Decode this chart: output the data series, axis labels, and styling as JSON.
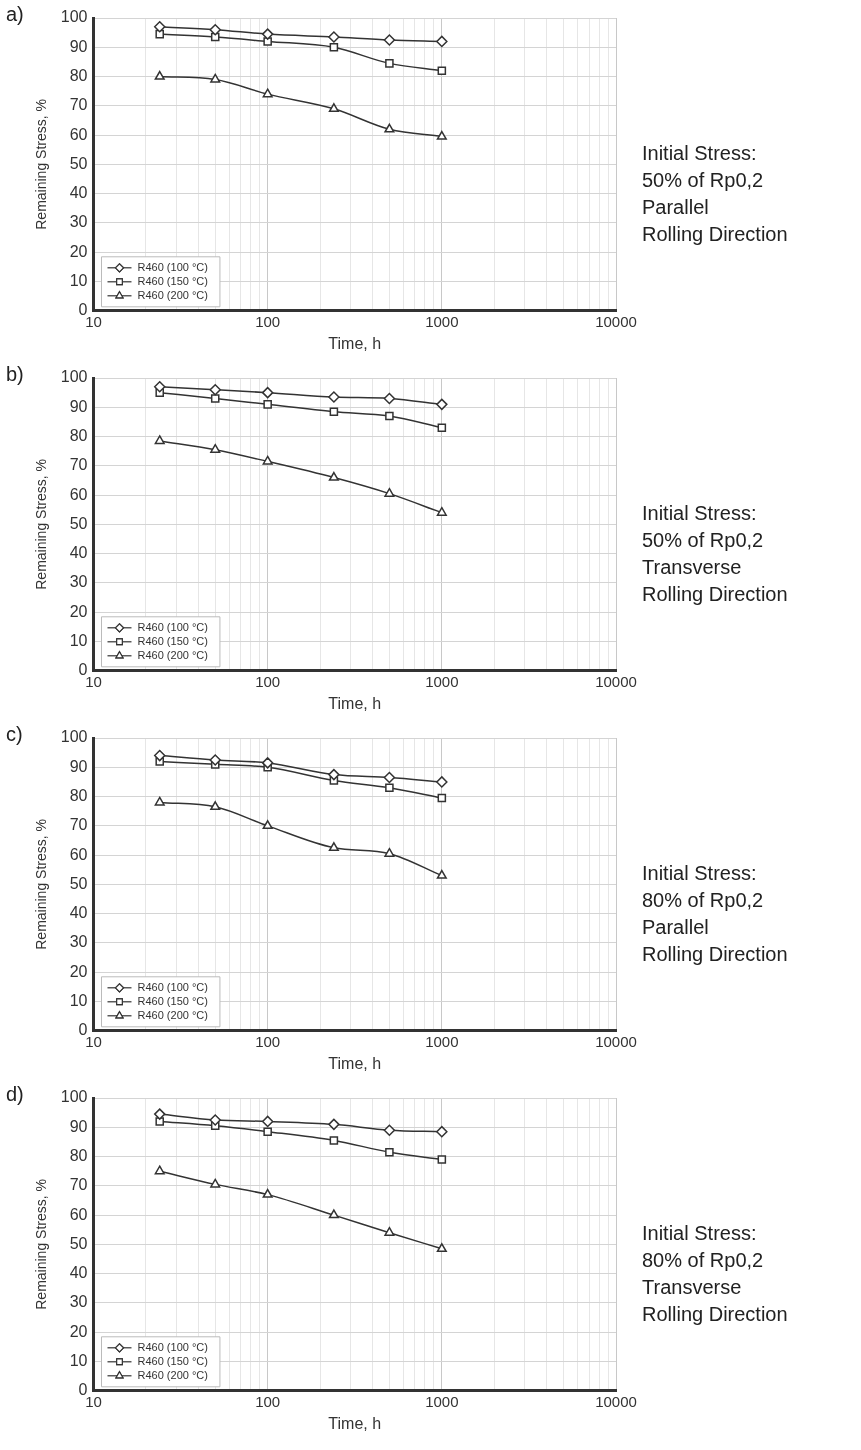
{
  "chart_data": [
    {
      "type": "line",
      "xlabel": "Time, h",
      "ylabel": "Remaining Stress, %",
      "annotations": [
        "a)",
        "Initial Stress:",
        "50% of Rp0,2",
        "Parallel",
        "Rolling Direction"
      ],
      "log": "x",
      "grid": true,
      "legend": "bottom left",
      "xlim": [
        10,
        10000
      ],
      "ylim": [
        0,
        100
      ],
      "xticks": [
        10,
        {
          "value": 20,
          "label": null
        },
        {
          "value": 30,
          "label": null
        },
        {
          "value": 40,
          "label": null
        },
        {
          "value": 50,
          "label": null
        },
        {
          "value": 60,
          "label": null
        },
        {
          "value": 70,
          "label": null
        },
        {
          "value": 80,
          "label": null
        },
        {
          "value": 90,
          "label": null
        },
        100,
        {
          "value": 200,
          "label": null
        },
        {
          "value": 300,
          "label": null
        },
        {
          "value": 400,
          "label": null
        },
        {
          "value": 500,
          "label": null
        },
        {
          "value": 600,
          "label": null
        },
        {
          "value": 700,
          "label": null
        },
        {
          "value": 800,
          "label": null
        },
        {
          "value": 900,
          "label": null
        },
        1000,
        {
          "value": 2000,
          "label": null
        },
        {
          "value": 3000,
          "label": null
        },
        {
          "value": 4000,
          "label": null
        },
        {
          "value": 5000,
          "label": null
        },
        {
          "value": 6000,
          "label": null
        },
        {
          "value": 7000,
          "label": null
        },
        {
          "value": 8000,
          "label": null
        },
        {
          "value": 9000,
          "label": null
        },
        10000
      ],
      "yticks": [
        0,
        10,
        20,
        30,
        40,
        50,
        60,
        70,
        80,
        90,
        100
      ],
      "x": [
        24,
        50,
        100,
        240,
        500,
        1000
      ],
      "line_style": "solid",
      "series": [
        {
          "name": "R460 (100 °C)",
          "color": "#333333",
          "marker": "diamond",
          "values": [
            97,
            96,
            94.5,
            93.5,
            92.5,
            92
          ]
        },
        {
          "name": "R460 (150 °C)",
          "color": "#333333",
          "marker": "square",
          "values": [
            94.5,
            93.5,
            92,
            90,
            84.5,
            82
          ]
        },
        {
          "name": "R460 (200 °C)",
          "color": "#333333",
          "marker": "triangle",
          "values": [
            80,
            79,
            74,
            69,
            62,
            59.5
          ]
        }
      ]
    },
    {
      "type": "line",
      "xlabel": "Time, h",
      "ylabel": "Remaining Stress, %",
      "annotations": [
        "b)",
        "Initial Stress:",
        "50% of Rp0,2",
        "Transverse",
        "Rolling Direction"
      ],
      "log": "x",
      "grid": true,
      "legend": "bottom left",
      "xlim": [
        10,
        10000
      ],
      "ylim": [
        0,
        100
      ],
      "xticks": [
        10,
        {
          "value": 20,
          "label": null
        },
        {
          "value": 30,
          "label": null
        },
        {
          "value": 40,
          "label": null
        },
        {
          "value": 50,
          "label": null
        },
        {
          "value": 60,
          "label": null
        },
        {
          "value": 70,
          "label": null
        },
        {
          "value": 80,
          "label": null
        },
        {
          "value": 90,
          "label": null
        },
        100,
        {
          "value": 200,
          "label": null
        },
        {
          "value": 300,
          "label": null
        },
        {
          "value": 400,
          "label": null
        },
        {
          "value": 500,
          "label": null
        },
        {
          "value": 600,
          "label": null
        },
        {
          "value": 700,
          "label": null
        },
        {
          "value": 800,
          "label": null
        },
        {
          "value": 900,
          "label": null
        },
        1000,
        {
          "value": 2000,
          "label": null
        },
        {
          "value": 3000,
          "label": null
        },
        {
          "value": 4000,
          "label": null
        },
        {
          "value": 5000,
          "label": null
        },
        {
          "value": 6000,
          "label": null
        },
        {
          "value": 7000,
          "label": null
        },
        {
          "value": 8000,
          "label": null
        },
        {
          "value": 9000,
          "label": null
        },
        10000
      ],
      "yticks": [
        0,
        10,
        20,
        30,
        40,
        50,
        60,
        70,
        80,
        90,
        100
      ],
      "x": [
        24,
        50,
        100,
        240,
        500,
        1000
      ],
      "line_style": "solid",
      "series": [
        {
          "name": "R460 (100 °C)",
          "color": "#333333",
          "marker": "diamond",
          "values": [
            97,
            96,
            95,
            93.5,
            93,
            91
          ]
        },
        {
          "name": "R460 (150 °C)",
          "color": "#333333",
          "marker": "square",
          "values": [
            95,
            93,
            91,
            88.5,
            87,
            83
          ]
        },
        {
          "name": "R460 (200 °C)",
          "color": "#333333",
          "marker": "triangle",
          "values": [
            78.5,
            75.5,
            71.5,
            66,
            60.5,
            54
          ]
        }
      ]
    },
    {
      "type": "line",
      "xlabel": "Time, h",
      "ylabel": "Remaining Stress, %",
      "annotations": [
        "c)",
        "Initial Stress:",
        "80% of Rp0,2",
        "Parallel",
        "Rolling Direction"
      ],
      "log": "x",
      "grid": true,
      "legend": "bottom left",
      "xlim": [
        10,
        10000
      ],
      "ylim": [
        0,
        100
      ],
      "xticks": [
        10,
        {
          "value": 20,
          "label": null
        },
        {
          "value": 30,
          "label": null
        },
        {
          "value": 40,
          "label": null
        },
        {
          "value": 50,
          "label": null
        },
        {
          "value": 60,
          "label": null
        },
        {
          "value": 70,
          "label": null
        },
        {
          "value": 80,
          "label": null
        },
        {
          "value": 90,
          "label": null
        },
        100,
        {
          "value": 200,
          "label": null
        },
        {
          "value": 300,
          "label": null
        },
        {
          "value": 400,
          "label": null
        },
        {
          "value": 500,
          "label": null
        },
        {
          "value": 600,
          "label": null
        },
        {
          "value": 700,
          "label": null
        },
        {
          "value": 800,
          "label": null
        },
        {
          "value": 900,
          "label": null
        },
        1000,
        {
          "value": 2000,
          "label": null
        },
        {
          "value": 3000,
          "label": null
        },
        {
          "value": 4000,
          "label": null
        },
        {
          "value": 5000,
          "label": null
        },
        {
          "value": 6000,
          "label": null
        },
        {
          "value": 7000,
          "label": null
        },
        {
          "value": 8000,
          "label": null
        },
        {
          "value": 9000,
          "label": null
        },
        10000
      ],
      "yticks": [
        0,
        10,
        20,
        30,
        40,
        50,
        60,
        70,
        80,
        90,
        100
      ],
      "x": [
        24,
        50,
        100,
        240,
        500,
        1000
      ],
      "line_style": "solid",
      "series": [
        {
          "name": "R460 (100 °C)",
          "color": "#333333",
          "marker": "diamond",
          "values": [
            94,
            92.5,
            91.5,
            87.5,
            86.5,
            85
          ]
        },
        {
          "name": "R460 (150 °C)",
          "color": "#333333",
          "marker": "square",
          "values": [
            92,
            91,
            90,
            85.5,
            83,
            79.5
          ]
        },
        {
          "name": "R460 (200 °C)",
          "color": "#333333",
          "marker": "triangle",
          "values": [
            78,
            76.5,
            70,
            62.5,
            60.5,
            53
          ]
        }
      ]
    },
    {
      "type": "line",
      "xlabel": "Time, h",
      "ylabel": "Remaining Stress, %",
      "annotations": [
        "d)",
        "Initial Stress:",
        "80% of Rp0,2",
        "Transverse",
        "Rolling Direction"
      ],
      "log": "x",
      "grid": true,
      "legend": "bottom left",
      "xlim": [
        10,
        10000
      ],
      "ylim": [
        0,
        100
      ],
      "xticks": [
        10,
        {
          "value": 20,
          "label": null
        },
        {
          "value": 30,
          "label": null
        },
        {
          "value": 40,
          "label": null
        },
        {
          "value": 50,
          "label": null
        },
        {
          "value": 60,
          "label": null
        },
        {
          "value": 70,
          "label": null
        },
        {
          "value": 80,
          "label": null
        },
        {
          "value": 90,
          "label": null
        },
        100,
        {
          "value": 200,
          "label": null
        },
        {
          "value": 300,
          "label": null
        },
        {
          "value": 400,
          "label": null
        },
        {
          "value": 500,
          "label": null
        },
        {
          "value": 600,
          "label": null
        },
        {
          "value": 700,
          "label": null
        },
        {
          "value": 800,
          "label": null
        },
        {
          "value": 900,
          "label": null
        },
        1000,
        {
          "value": 2000,
          "label": null
        },
        {
          "value": 3000,
          "label": null
        },
        {
          "value": 4000,
          "label": null
        },
        {
          "value": 5000,
          "label": null
        },
        {
          "value": 6000,
          "label": null
        },
        {
          "value": 7000,
          "label": null
        },
        {
          "value": 8000,
          "label": null
        },
        {
          "value": 9000,
          "label": null
        },
        10000
      ],
      "yticks": [
        0,
        10,
        20,
        30,
        40,
        50,
        60,
        70,
        80,
        90,
        100
      ],
      "x": [
        24,
        50,
        100,
        240,
        500,
        1000
      ],
      "line_style": "solid",
      "series": [
        {
          "name": "R460 (100 °C)",
          "color": "#333333",
          "marker": "diamond",
          "values": [
            94.5,
            92.5,
            92,
            91,
            89,
            88.5
          ]
        },
        {
          "name": "R460 (150 °C)",
          "color": "#333333",
          "marker": "square",
          "values": [
            92,
            90.5,
            88.5,
            85.5,
            81.5,
            79
          ]
        },
        {
          "name": "R460 (200 °C)",
          "color": "#333333",
          "marker": "triangle",
          "values": [
            75,
            70.5,
            67,
            60,
            54,
            48.5
          ]
        }
      ]
    }
  ]
}
